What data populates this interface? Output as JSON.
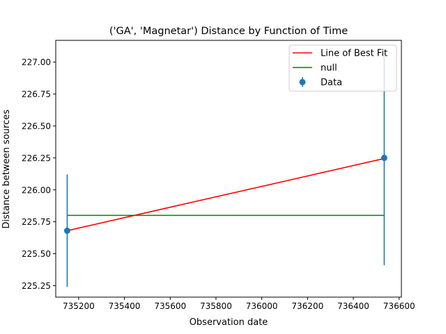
{
  "chart_data": {
    "type": "scatter",
    "title": "('GA', 'Magnetar') Distance by Function of Time",
    "xlabel": "Observation date",
    "ylabel": "Distance between sources",
    "xlim": [
      735100,
      736610
    ],
    "ylim": [
      225.16,
      227.17
    ],
    "xticks": [
      735200,
      735400,
      735600,
      735800,
      736000,
      736200,
      736400,
      736600
    ],
    "yticks": [
      225.25,
      225.5,
      225.75,
      226.0,
      226.25,
      226.5,
      226.75,
      227.0
    ],
    "xtick_labels": [
      "735200",
      "735400",
      "735600",
      "735800",
      "736000",
      "736200",
      "736400",
      "736600"
    ],
    "ytick_labels": [
      "225.25",
      "225.50",
      "225.75",
      "226.00",
      "226.25",
      "226.50",
      "226.75",
      "227.00"
    ],
    "grid": false,
    "legend_position": "top-right",
    "legend": [
      "Line of Best Fit",
      "null",
      "Data"
    ],
    "series": [
      {
        "name": "Line of Best Fit",
        "kind": "line",
        "color": "#ff0000",
        "x": [
          735150,
          736535
        ],
        "y": [
          225.68,
          226.245
        ]
      },
      {
        "name": "null",
        "kind": "line",
        "color": "#008000",
        "x": [
          735150,
          736535
        ],
        "y": [
          225.8,
          225.8
        ]
      },
      {
        "name": "Data",
        "kind": "errorbar",
        "color": "#1f77b4",
        "x": [
          735150,
          736535
        ],
        "y": [
          225.68,
          226.25
        ],
        "yerr": [
          0.44,
          0.84
        ]
      }
    ]
  }
}
